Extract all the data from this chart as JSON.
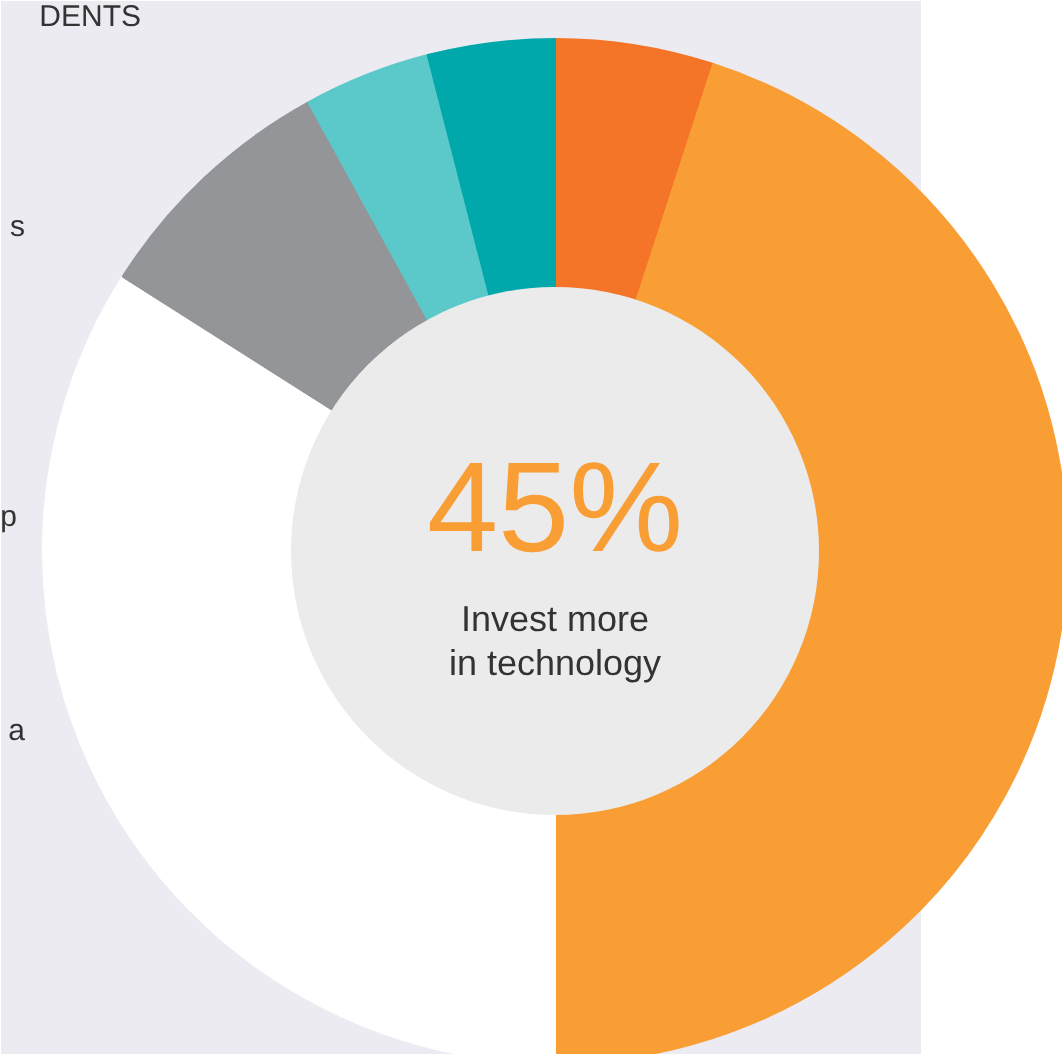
{
  "chart_data": {
    "type": "donut",
    "categories": [
      null,
      null,
      null,
      null,
      null,
      null
    ],
    "values": [
      5,
      45,
      34,
      8,
      4,
      4
    ],
    "colors": [
      "#f47428",
      "#f99e35",
      "#ffffff",
      "#939598",
      "#5bc8c9",
      "#00a8ab"
    ],
    "annotations": [
      "45%",
      "Invest more\nin technology",
      "DENTS",
      "s",
      "p",
      "a"
    ]
  }
}
